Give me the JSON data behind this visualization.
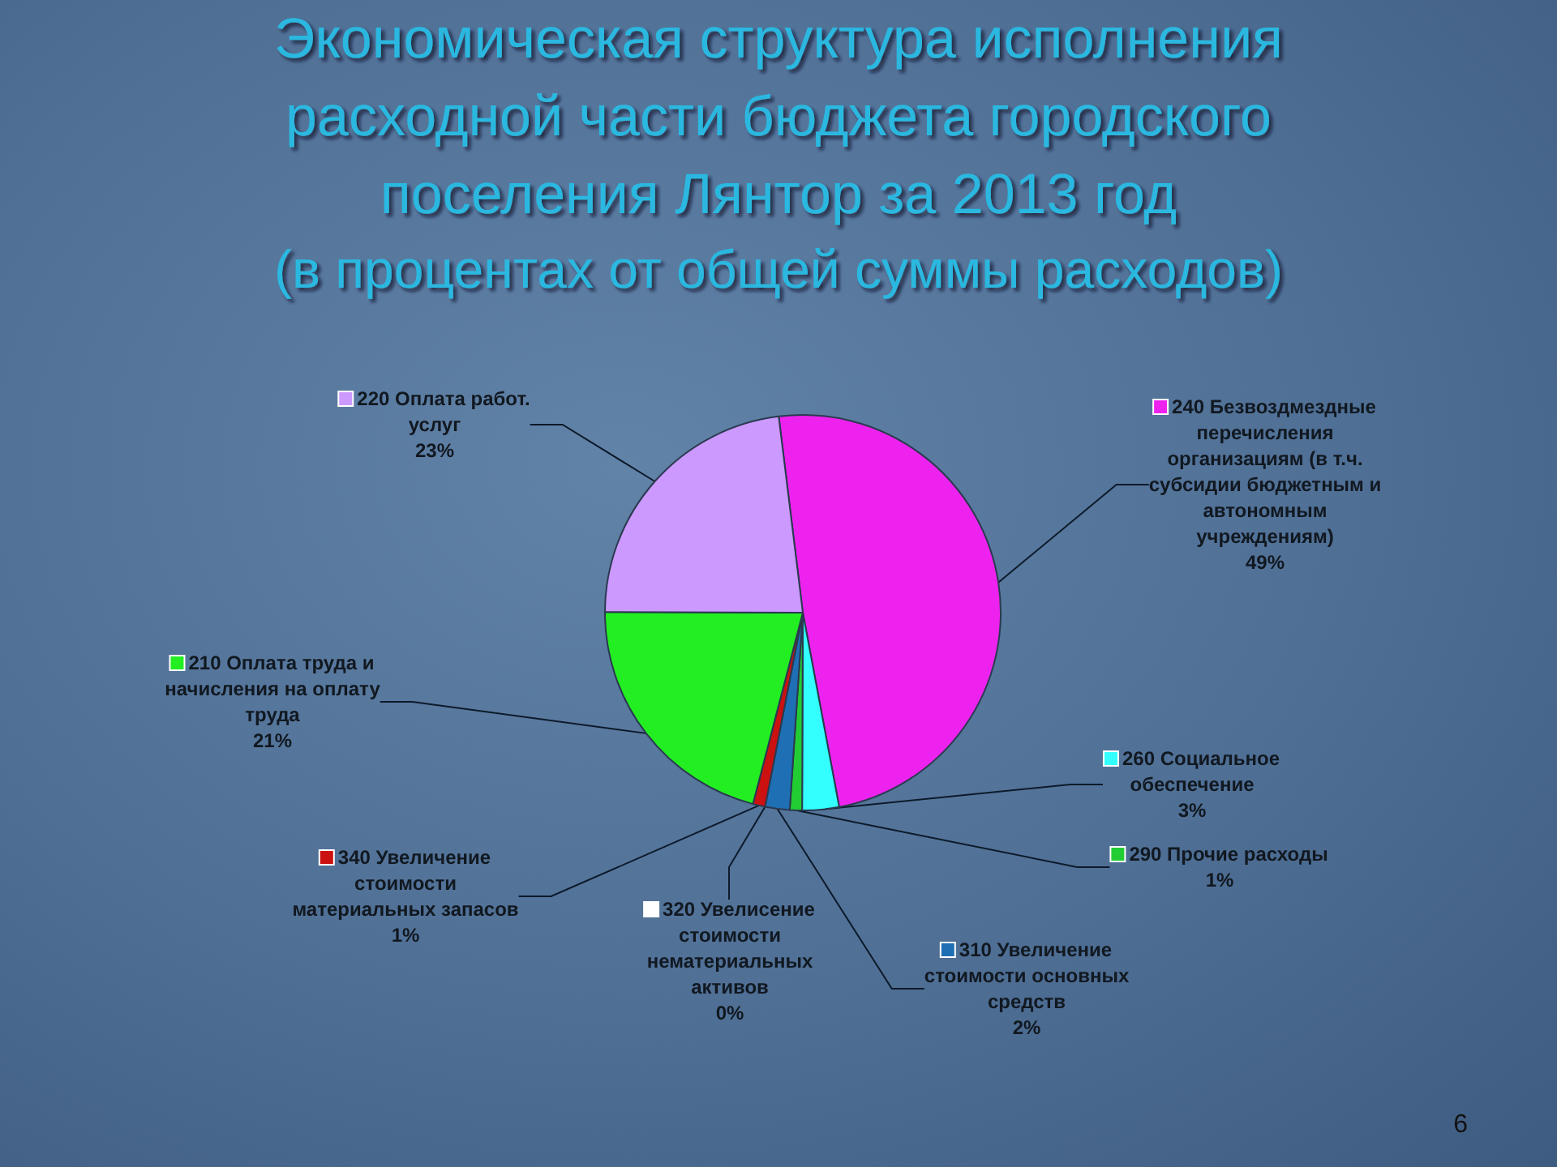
{
  "chart_data": {
    "type": "pie",
    "title": "Экономическая структура исполнения расходной части бюджета городского поселения Лянтор за 2013 год",
    "subtitle": "(в процентах от общей суммы расходов)",
    "categories": [
      "240 Безвоздмездные перечисления организациям (в т.ч. субсидии бюджетным и автономным учреждениям)",
      "260 Социальное обеспечение",
      "290 Прочие расходы",
      "310 Увеличение стоимости основных средств",
      "320 Увелисение стоимости нематериальных активов",
      "340 Увеличение стоимости материальных запасов",
      "210 Оплата труда и начисления на оплату труда",
      "220 Оплата работ. услуг"
    ],
    "values": [
      49,
      3,
      1,
      2,
      0,
      1,
      21,
      23
    ],
    "value_labels": [
      "49%",
      "3%",
      "1%",
      "2%",
      "0%",
      "1%",
      "21%",
      "23%"
    ],
    "colors": [
      "#ee22ee",
      "#33ffff",
      "#22cc33",
      "#1f6fb5",
      "#ffffff",
      "#cc1111",
      "#22ee22",
      "#cc99ff"
    ],
    "legend": "left",
    "annotations": [
      "6"
    ]
  }
}
